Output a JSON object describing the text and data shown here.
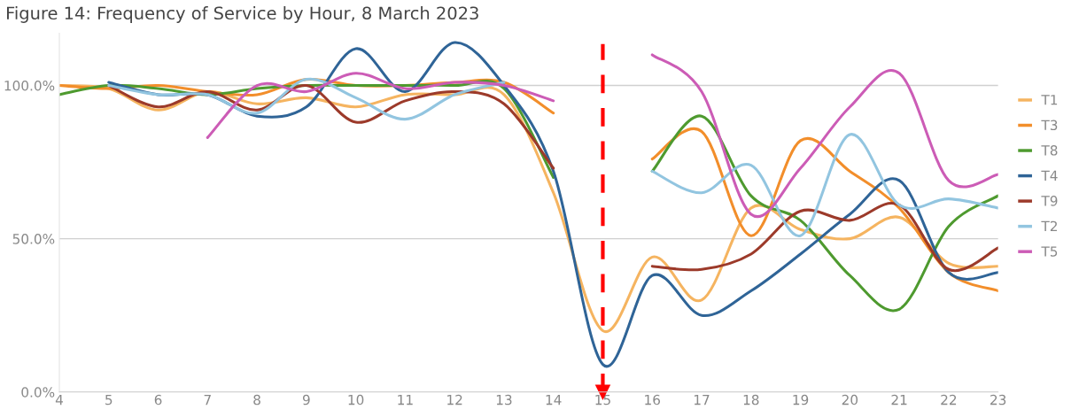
{
  "chart_data": {
    "type": "line",
    "title": "Figure 14: Frequency of Service by Hour, 8 March 2023",
    "x": [
      4,
      5,
      6,
      7,
      8,
      9,
      10,
      11,
      12,
      13,
      14,
      15,
      16,
      17,
      18,
      19,
      20,
      21,
      22,
      23
    ],
    "xlim": [
      4,
      23
    ],
    "xticks": [
      4,
      5,
      6,
      7,
      8,
      9,
      10,
      11,
      12,
      13,
      14,
      15,
      16,
      17,
      18,
      19,
      20,
      21,
      22,
      23
    ],
    "ylim": [
      0,
      117
    ],
    "yticks": [
      {
        "value": 0,
        "label": "0.0%"
      },
      {
        "value": 50,
        "label": "50.0%"
      },
      {
        "value": 100,
        "label": "100.0%"
      }
    ],
    "grid": "y",
    "legend": "right",
    "marker": "none",
    "line_style": "solid",
    "series": [
      {
        "name": "T1",
        "color": "#f5b460",
        "values": [
          100,
          99,
          92,
          98,
          94,
          96,
          93,
          97,
          97,
          97,
          65,
          20,
          44,
          30,
          60,
          53,
          50,
          57,
          42,
          41
        ]
      },
      {
        "name": "T3",
        "color": "#f28e2b",
        "values": [
          100,
          99,
          100,
          98,
          97,
          102,
          100,
          100,
          101,
          101,
          91,
          null,
          76,
          85,
          51,
          82,
          72,
          60,
          39,
          33
        ]
      },
      {
        "name": "T8",
        "color": "#4e9a2f",
        "values": [
          97,
          100,
          99,
          97,
          99,
          100,
          100,
          100,
          100,
          99,
          70,
          null,
          72,
          90,
          64,
          56,
          38,
          27,
          54,
          64
        ]
      },
      {
        "name": "T4",
        "color": "#2f6497",
        "values": [
          null,
          101,
          97,
          97,
          90,
          93,
          112,
          98,
          114,
          100,
          72,
          9,
          38,
          25,
          33,
          45,
          58,
          69,
          39,
          39
        ]
      },
      {
        "name": "T9",
        "color": "#9c3a2a",
        "values": [
          null,
          100,
          93,
          98,
          92,
          100,
          88,
          95,
          98,
          94,
          73,
          null,
          41,
          40,
          45,
          59,
          56,
          61,
          40,
          47
        ]
      },
      {
        "name": "T2",
        "color": "#92c5e0",
        "values": [
          null,
          100,
          97,
          97,
          91,
          102,
          96,
          89,
          97,
          101,
          null,
          null,
          72,
          65,
          74,
          51,
          84,
          61,
          63,
          60
        ]
      },
      {
        "name": "T5",
        "color": "#cc5cb6",
        "values": [
          null,
          null,
          null,
          83,
          100,
          98,
          104,
          99,
          101,
          100,
          95,
          null,
          110,
          98,
          58,
          73,
          93,
          104,
          69,
          71
        ]
      }
    ],
    "ref_lines": [
      {
        "axis": "x",
        "value": 15,
        "color": "#ff0000",
        "line_style": "dashed"
      }
    ]
  }
}
